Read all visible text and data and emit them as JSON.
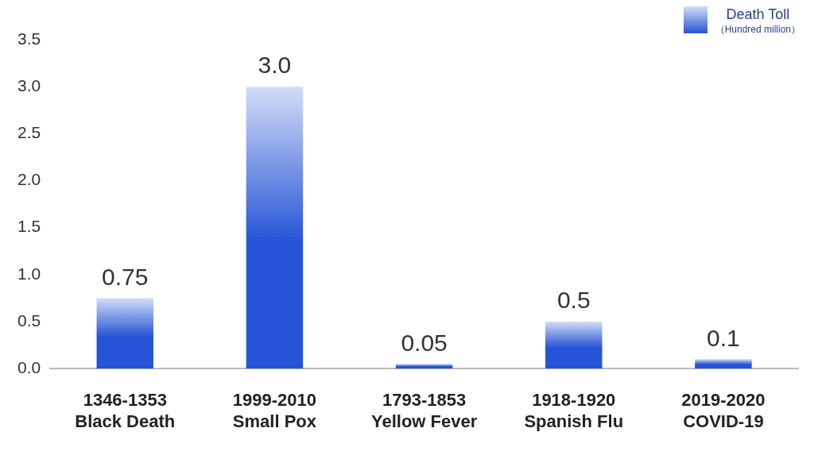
{
  "chart_data": {
    "type": "bar",
    "categories": [
      "1346-1353\nBlack Death",
      "1999-2010\nSmall Pox",
      "1793-1853\nYellow Fever",
      "1918-1920\nSpanish Flu",
      "2019-2020\nCOVID-19"
    ],
    "series": [
      {
        "name": "Death Toll",
        "color": "#2554d6",
        "values": [
          0.75,
          3.0,
          0.05,
          0.5,
          0.1
        ],
        "value_labels": [
          "0.75",
          "3.0",
          "0.05",
          "0.5",
          "0.1"
        ]
      }
    ],
    "legend_title": "（Hundred million）",
    "legend": "top right",
    "ylim": [
      0,
      3.5
    ],
    "yticks": [
      {
        "value": 0,
        "label": "0.0"
      },
      {
        "value": 0.5,
        "label": "0.5"
      },
      {
        "value": 1,
        "label": "1.0"
      },
      {
        "value": 1.5,
        "label": "1.5"
      },
      {
        "value": 2,
        "label": "2.0"
      },
      {
        "value": 2.5,
        "label": "2.5"
      },
      {
        "value": 3,
        "label": "3.0"
      },
      {
        "value": 3.5,
        "label": "3.5"
      }
    ]
  }
}
